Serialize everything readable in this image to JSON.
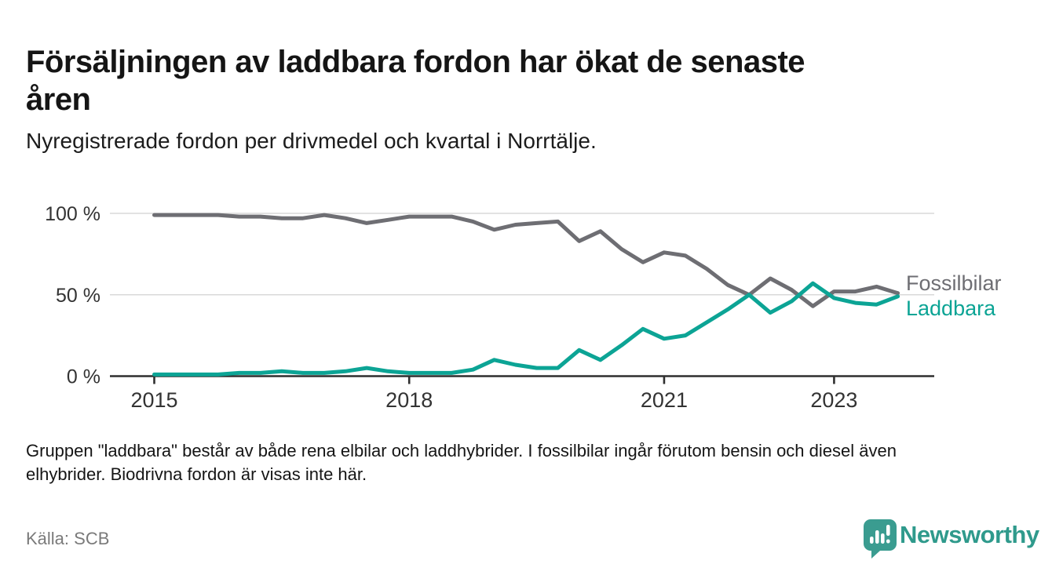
{
  "header": {
    "title": "Försäljningen av laddbara fordon har ökat de senaste\nåren",
    "subtitle": "Nyregistrerade fordon per drivmedel och kvartal i Norrtälje."
  },
  "chart_data": {
    "type": "line",
    "x_unit": "quarter",
    "x": [
      "2015 Q1",
      "2015 Q2",
      "2015 Q3",
      "2015 Q4",
      "2016 Q1",
      "2016 Q2",
      "2016 Q3",
      "2016 Q4",
      "2017 Q1",
      "2017 Q2",
      "2017 Q3",
      "2017 Q4",
      "2018 Q1",
      "2018 Q2",
      "2018 Q3",
      "2018 Q4",
      "2019 Q1",
      "2019 Q2",
      "2019 Q3",
      "2019 Q4",
      "2020 Q1",
      "2020 Q2",
      "2020 Q3",
      "2020 Q4",
      "2021 Q1",
      "2021 Q2",
      "2021 Q3",
      "2021 Q4",
      "2022 Q1",
      "2022 Q2",
      "2022 Q3",
      "2022 Q4",
      "2023 Q1",
      "2023 Q2",
      "2023 Q3",
      "2023 Q4"
    ],
    "series": [
      {
        "name": "Fossilbilar",
        "color": "#6e6e73",
        "values": [
          99,
          99,
          99,
          99,
          98,
          98,
          97,
          97,
          99,
          97,
          94,
          96,
          98,
          98,
          98,
          95,
          90,
          93,
          94,
          95,
          83,
          89,
          78,
          70,
          76,
          74,
          66,
          56,
          50,
          60,
          53,
          43,
          52,
          52,
          55,
          51
        ]
      },
      {
        "name": "Laddbara",
        "color": "#0ca495",
        "values": [
          1,
          1,
          1,
          1,
          2,
          2,
          3,
          2,
          2,
          3,
          5,
          3,
          2,
          2,
          2,
          4,
          10,
          7,
          5,
          5,
          16,
          10,
          19,
          29,
          23,
          25,
          33,
          41,
          50,
          39,
          46,
          57,
          48,
          45,
          44,
          49
        ]
      }
    ],
    "ylim": [
      0,
      100
    ],
    "yticks": [
      {
        "label": "0 %",
        "value": 0
      },
      {
        "label": "50 %",
        "value": 50
      },
      {
        "label": "100 %",
        "value": 100
      }
    ],
    "xticks": [
      {
        "label": "2015",
        "index": 0
      },
      {
        "label": "2018",
        "index": 12
      },
      {
        "label": "2021",
        "index": 24
      },
      {
        "label": "2023",
        "index": 32
      }
    ],
    "grid": "horizontal",
    "legend_position": "right-of-line-end"
  },
  "footer": {
    "note": "Gruppen \"laddbara\" består av både rena elbilar och laddhybrider. I fossilbilar ingår förutom bensin och diesel även\nelhybrider. Biodrivna fordon är visas inte här.",
    "source": "Källa: SCB"
  },
  "branding": {
    "name": "Newsworthy",
    "icon": "newsworthy-pin-barchart-icon",
    "color": "#2f9a8c"
  }
}
